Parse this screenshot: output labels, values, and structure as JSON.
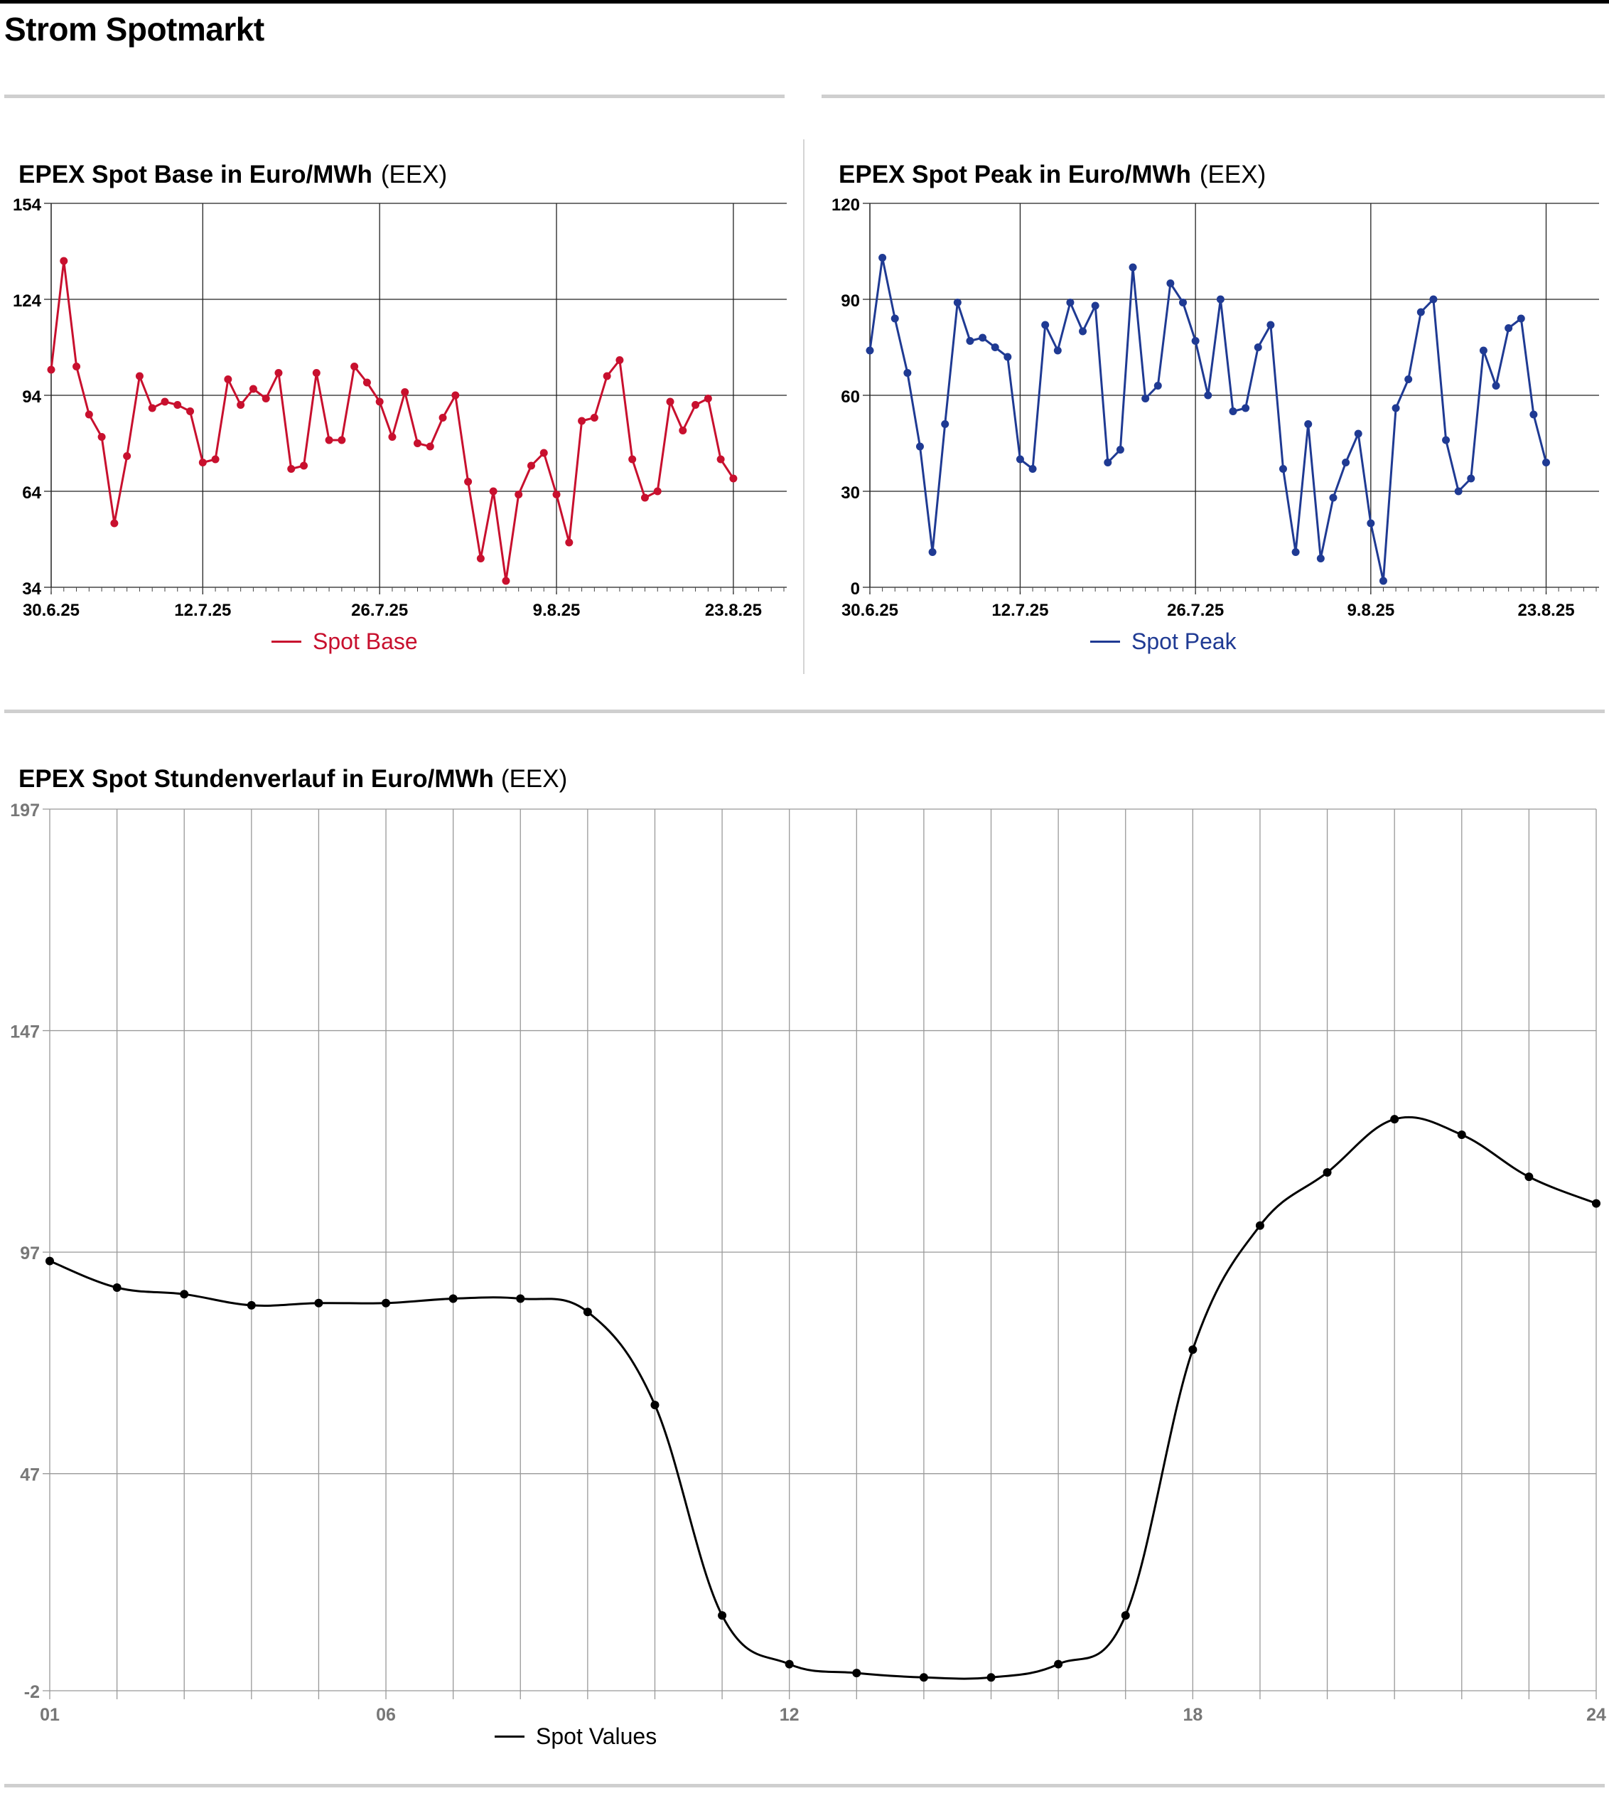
{
  "page": {
    "title": "Strom Spotmarkt"
  },
  "colors": {
    "base": "#c8102e",
    "peak": "#1f3a93",
    "hourly": "#000000",
    "grid": "#999999",
    "rule": "#cfcfcf"
  },
  "charts": {
    "base": {
      "title": "EPEX Spot Base in Euro/MWh",
      "source": "(EEX)",
      "legend": "Spot Base"
    },
    "peak": {
      "title": "EPEX Spot Peak in Euro/MWh",
      "source": "(EEX)",
      "legend": "Spot Peak"
    },
    "hourly": {
      "title": "EPEX Spot Stundenverlauf in Euro/MWh",
      "source": "(EEX)",
      "legend": "Spot Values"
    }
  },
  "chart_data": [
    {
      "id": "base",
      "type": "line",
      "title": "EPEX Spot Base in Euro/MWh (EEX)",
      "x_start": "2025-06-30",
      "x_end": "2025-08-27",
      "x_tick_labels": [
        "30.6.25",
        "12.7.25",
        "26.7.25",
        "9.8.25",
        "23.8.25"
      ],
      "x_ticks": [
        "2025-06-30",
        "2025-07-12",
        "2025-07-26",
        "2025-08-09",
        "2025-08-23"
      ],
      "ylim": [
        34,
        154
      ],
      "y_ticks": [
        34,
        64,
        94,
        124,
        154
      ],
      "series": [
        {
          "name": "Spot Base",
          "color": "#c8102e",
          "values": [
            102,
            136,
            103,
            88,
            81,
            54,
            75,
            100,
            90,
            92,
            91,
            89,
            73,
            74,
            99,
            91,
            96,
            93,
            101,
            71,
            72,
            101,
            80,
            80,
            103,
            98,
            92,
            81,
            95,
            79,
            78,
            87,
            94,
            67,
            43,
            64,
            36,
            63,
            72,
            76,
            63,
            48,
            86,
            87,
            100,
            105,
            74,
            62,
            64,
            92,
            83,
            91,
            93,
            74,
            68
          ]
        }
      ]
    },
    {
      "id": "peak",
      "type": "line",
      "title": "EPEX Spot Peak in Euro/MWh (EEX)",
      "x_start": "2025-06-30",
      "x_end": "2025-08-27",
      "x_tick_labels": [
        "30.6.25",
        "12.7.25",
        "26.7.25",
        "9.8.25",
        "23.8.25"
      ],
      "x_ticks": [
        "2025-06-30",
        "2025-07-12",
        "2025-07-26",
        "2025-08-09",
        "2025-08-23"
      ],
      "ylim": [
        0,
        120
      ],
      "y_ticks": [
        0,
        30,
        60,
        90,
        120
      ],
      "series": [
        {
          "name": "Spot Peak",
          "color": "#1f3a93",
          "values": [
            74,
            103,
            84,
            67,
            44,
            11,
            51,
            89,
            77,
            78,
            75,
            72,
            40,
            37,
            82,
            74,
            89,
            80,
            88,
            39,
            43,
            100,
            59,
            63,
            95,
            89,
            77,
            60,
            90,
            55,
            56,
            75,
            82,
            37,
            11,
            51,
            9,
            28,
            39,
            48,
            20,
            2,
            56,
            65,
            86,
            90,
            46,
            30,
            34,
            74,
            63,
            81,
            84,
            54,
            39
          ]
        }
      ]
    },
    {
      "id": "hourly",
      "type": "line",
      "title": "EPEX Spot Stundenverlauf in Euro/MWh (EEX)",
      "x": [
        1,
        2,
        3,
        4,
        5,
        6,
        7,
        8,
        9,
        10,
        11,
        12,
        13,
        14,
        15,
        16,
        17,
        18,
        19,
        20,
        21,
        22,
        23,
        24
      ],
      "x_tick_labels": [
        "01",
        "06",
        "12",
        "18",
        "24"
      ],
      "x_ticks": [
        1,
        6,
        12,
        18,
        24
      ],
      "ylim": [
        -2,
        197
      ],
      "y_ticks": [
        -2,
        47,
        97,
        147,
        197
      ],
      "series": [
        {
          "name": "Spot Values",
          "color": "#000000",
          "values": [
            95,
            89,
            87.5,
            85,
            85.5,
            85.5,
            86.5,
            86.5,
            83.5,
            62.5,
            15,
            4,
            2,
            1,
            1,
            4,
            15,
            75,
            103,
            115,
            127,
            123.5,
            114,
            108
          ]
        }
      ]
    }
  ]
}
